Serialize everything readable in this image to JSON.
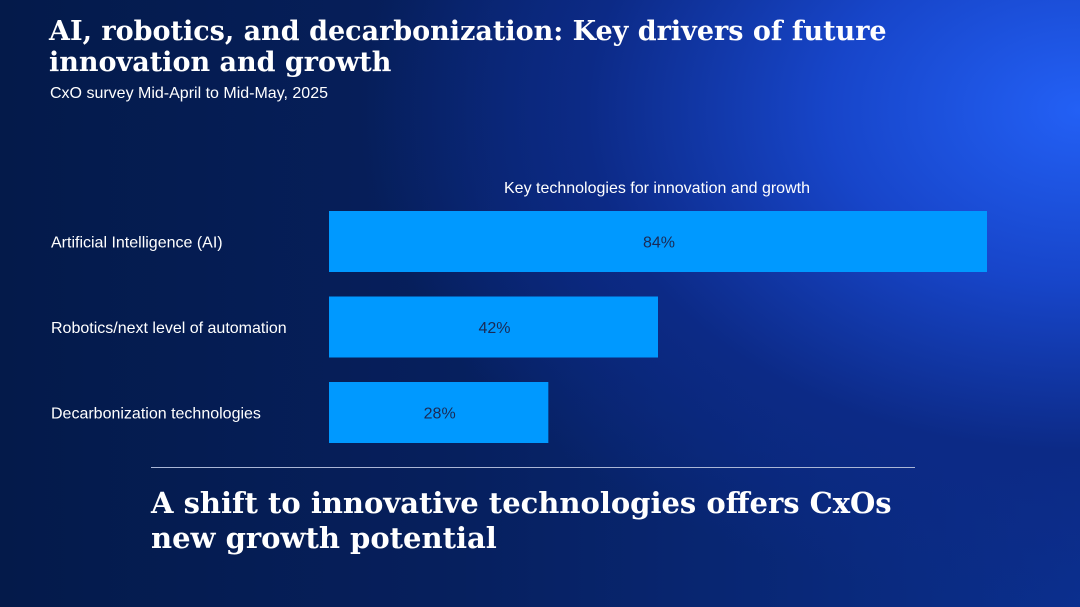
{
  "header": {
    "title": "AI, robotics, and decarbonization: Key drivers of future innovation and growth",
    "subtitle": "CxO survey Mid-April to Mid-May, 2025"
  },
  "chart_data": {
    "type": "bar",
    "orientation": "horizontal",
    "title": "Key technologies for innovation and growth",
    "categories": [
      "Artificial Intelligence (AI)",
      "Robotics/next level of automation",
      "Decarbonization technologies"
    ],
    "values": [
      84,
      42,
      28
    ],
    "value_labels": [
      "84%",
      "42%",
      "28%"
    ],
    "unit": "%",
    "xlim": [
      0,
      100
    ],
    "bar_color": "#0099ff",
    "grid": false,
    "legend": "none"
  },
  "footer": {
    "takeaway": "A shift to innovative technologies offers CxOs new growth potential"
  }
}
